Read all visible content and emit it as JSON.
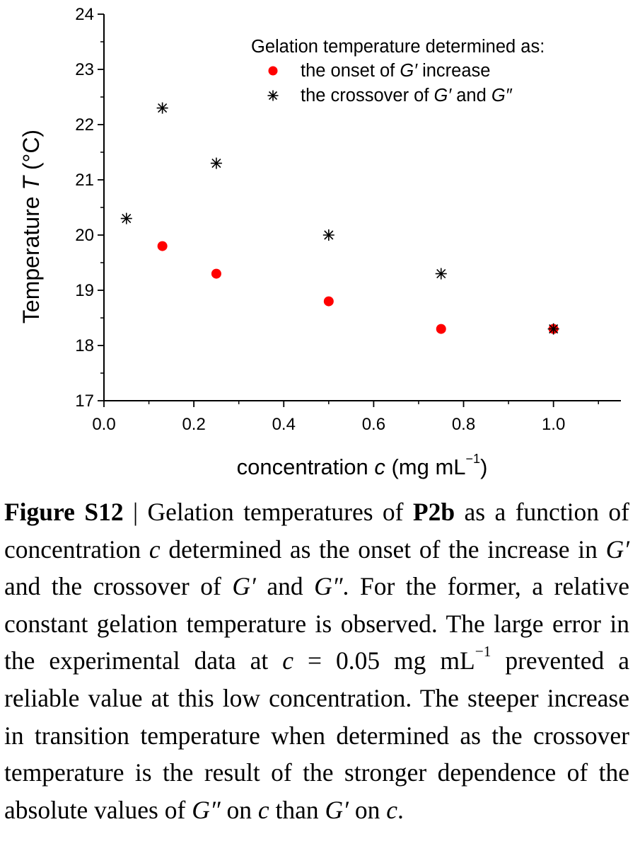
{
  "chart_data": {
    "type": "scatter",
    "xlim": [
      0.0,
      1.15
    ],
    "ylim": [
      17,
      24
    ],
    "x_ticks": [
      0.0,
      0.2,
      0.4,
      0.6,
      0.8,
      1.0
    ],
    "x_tick_labels": [
      "0.0",
      "0.2",
      "0.4",
      "0.6",
      "0.8",
      "1.0"
    ],
    "y_ticks": [
      17,
      18,
      19,
      20,
      21,
      22,
      23,
      24
    ],
    "y_tick_labels": [
      "17",
      "18",
      "19",
      "20",
      "21",
      "22",
      "23",
      "24"
    ],
    "xlabel": {
      "pre": "concentration ",
      "var": "c",
      "post": "  (mg mL",
      "sup": "−1",
      "close": ")"
    },
    "ylabel": {
      "pre": "Temperature ",
      "var": "T",
      "post": " (°C)"
    },
    "grid": false,
    "legend_position": "top-right",
    "legend_title": "Gelation temperature determined as:",
    "series": [
      {
        "name": "the onset of G′ increase",
        "legend_parts": [
          "the onset of ",
          "G′",
          " increase"
        ],
        "marker": "filled-circle",
        "color": "#ff0000",
        "x": [
          0.13,
          0.25,
          0.5,
          0.75,
          1.0
        ],
        "y": [
          19.8,
          19.3,
          18.8,
          18.3,
          18.3
        ]
      },
      {
        "name": "the crossover of G′ and G″",
        "legend_parts": [
          "the crossover of ",
          "G′",
          " and ",
          "G″"
        ],
        "marker": "asterisk",
        "color": "#000000",
        "x": [
          0.05,
          0.13,
          0.25,
          0.5,
          0.75,
          1.0
        ],
        "y": [
          20.3,
          22.3,
          21.3,
          20.0,
          19.3,
          18.3
        ]
      }
    ]
  },
  "caption": {
    "label": "Figure S12",
    "separator": " | ",
    "t1": "Gelation temperatures of ",
    "compound": "P2b",
    "t2": " as a function of concentration ",
    "c1": "c",
    "t3": " determined as the onset of the increase in ",
    "g1": "G′",
    "t4": " and the crossover of ",
    "g2": "G′",
    "t5": " and ",
    "g3": "G″",
    "t6": ". For the former, a relative constant gelation temperature is observed. The large error in the experimental data at ",
    "c2": "c",
    "t7": " = 0.05 mg mL",
    "sup1": "−1",
    "t8": " prevented a reliable value at this low concentration. The steeper increase in transition temperature when determined as the crossover temperature is the result of the stronger dependence of the absolute values of ",
    "g4": "G″",
    "t9": " on ",
    "c3": "c",
    "t10": " than ",
    "g5": "G′",
    "t11": " on ",
    "c4": "c",
    "t12": "."
  }
}
